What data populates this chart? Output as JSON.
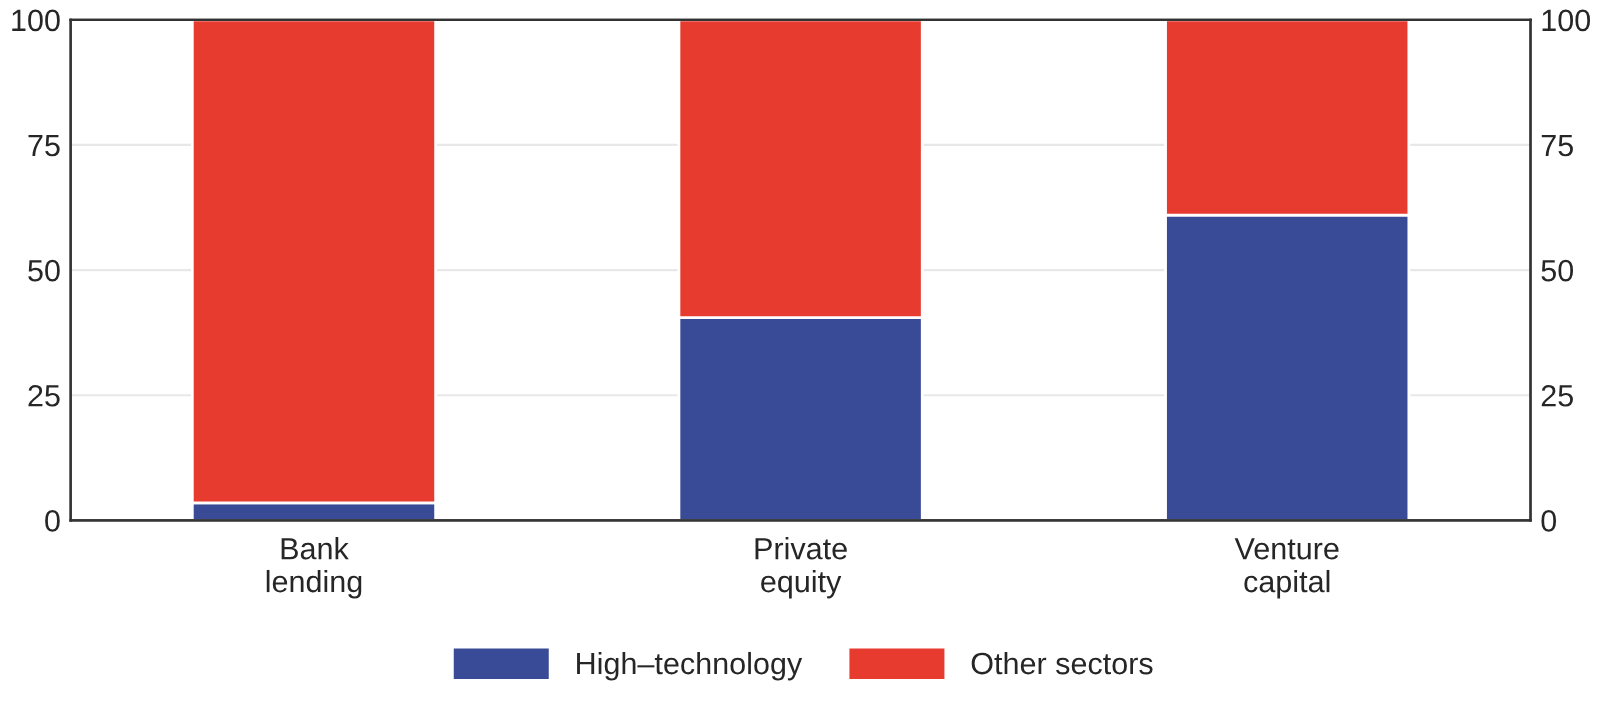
{
  "chart_data": {
    "type": "bar",
    "stacked": true,
    "categories": [
      "Bank\nlending",
      "Private\nequity",
      "Venture\ncapital"
    ],
    "series": [
      {
        "name": "High–technology",
        "color": "#394a97",
        "values": [
          3.5,
          40.5,
          61
        ]
      },
      {
        "name": "Other sectors",
        "color": "#e83b30",
        "values": [
          96.5,
          59.5,
          39
        ]
      }
    ],
    "ylim": [
      0,
      100
    ],
    "yticks": [
      0,
      25,
      50,
      75,
      100
    ],
    "y2lim": [
      0,
      100
    ],
    "y2ticks": [
      0,
      25,
      50,
      75,
      100
    ],
    "grid": "y",
    "legend": "bottom"
  }
}
